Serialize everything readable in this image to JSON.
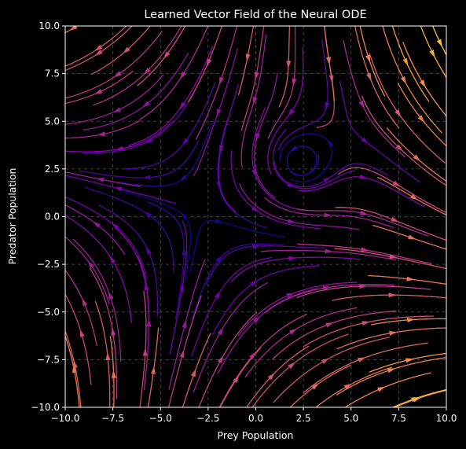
{
  "chart_data": {
    "type": "streamplot",
    "title": "Learned Vector Field of the Neural ODE",
    "xlabel": "Prey Population",
    "ylabel": "Predator Population",
    "xlim": [
      -10.0,
      10.0
    ],
    "ylim": [
      -10.0,
      10.0
    ],
    "xticks": [
      -10.0,
      -7.5,
      -5.0,
      -2.5,
      0.0,
      2.5,
      5.0,
      7.5,
      10.0
    ],
    "yticks": [
      -10.0,
      -7.5,
      -5.0,
      -2.5,
      0.0,
      2.5,
      5.0,
      7.5,
      10.0
    ],
    "xtick_labels": [
      "−10.0",
      "−7.5",
      "−5.0",
      "−2.5",
      "0.0",
      "2.5",
      "5.0",
      "7.5",
      "10.0"
    ],
    "ytick_labels": [
      "−10.0",
      "−7.5",
      "−5.0",
      "−2.5",
      "0.0",
      "2.5",
      "5.0",
      "7.5",
      "10.0"
    ],
    "grid": true,
    "colormap": "plasma",
    "color_encodes": "vector magnitude",
    "background": "#000000",
    "features": {
      "center_equilibrium": [
        2.3,
        2.9
      ],
      "separatrix_vertical_x": 0.0,
      "separatrix_diagonal": "from (-2.5, 0.0) toward (-10.0, -7.5)"
    }
  }
}
